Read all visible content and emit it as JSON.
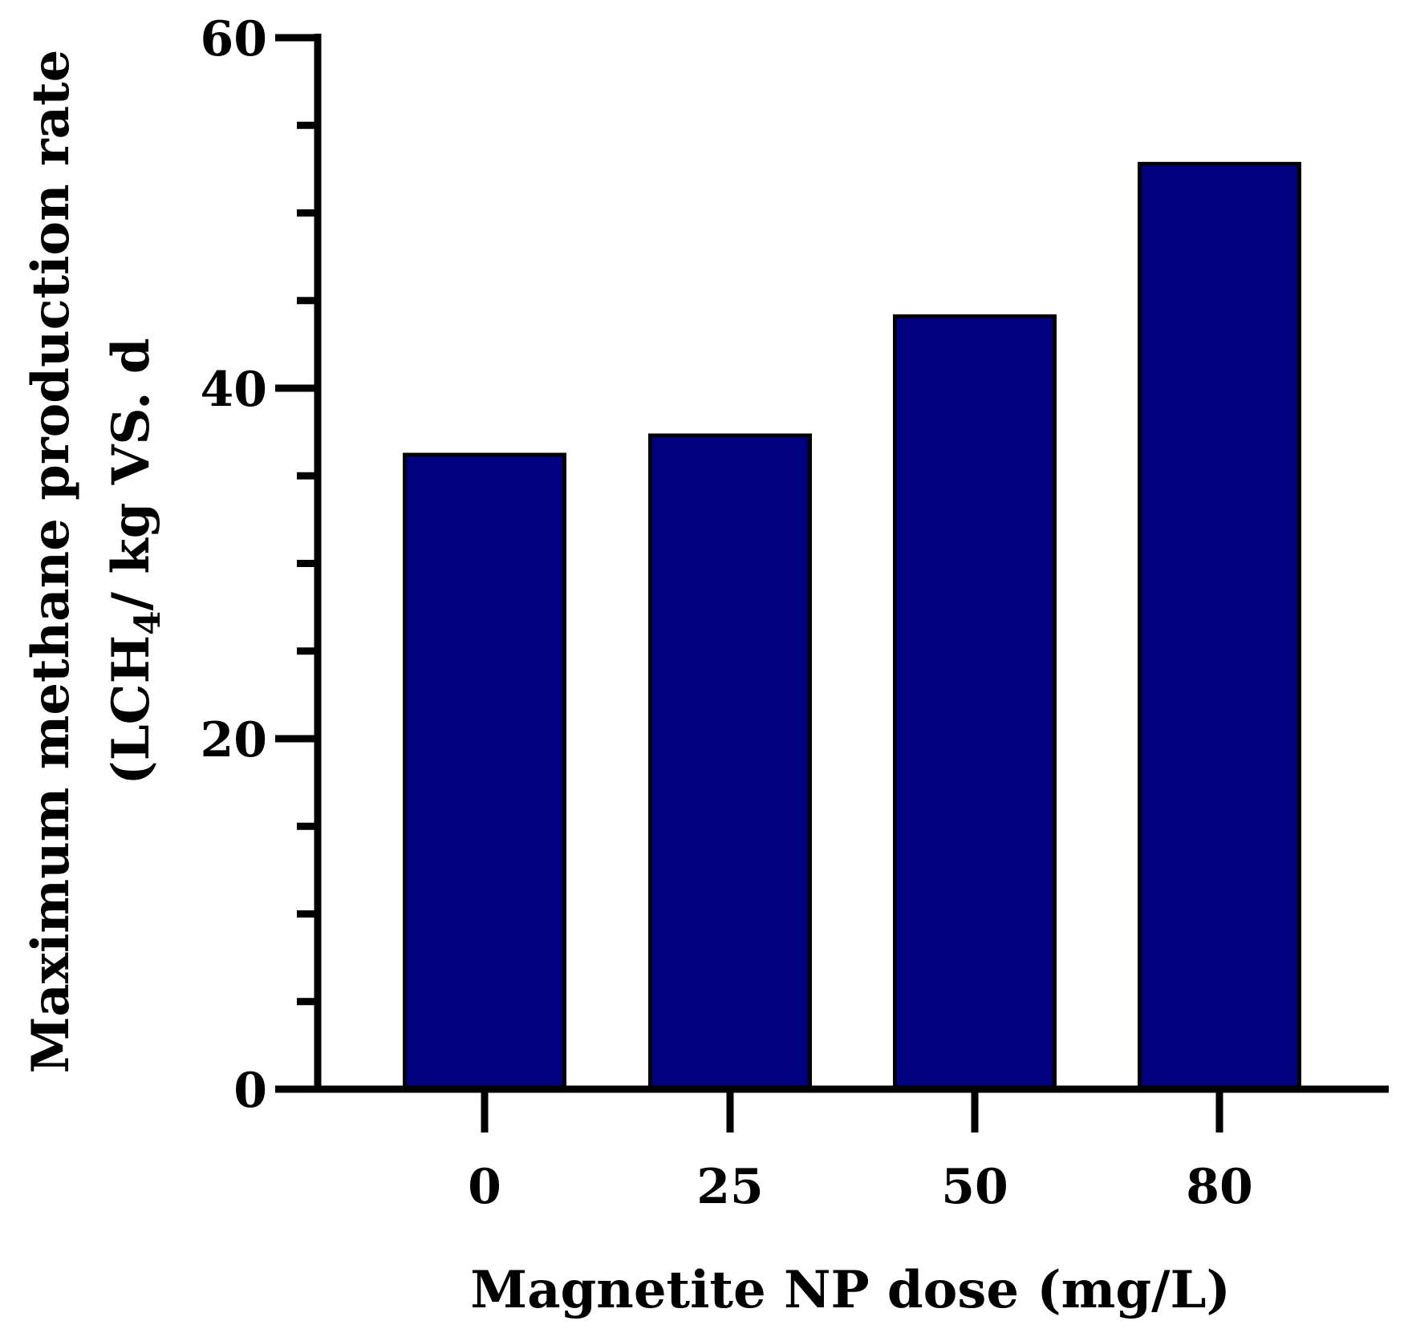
{
  "chart_data": {
    "type": "bar",
    "categories": [
      "0",
      "25",
      "50",
      "80"
    ],
    "values": [
      36.2,
      37.3,
      44.1,
      52.8
    ],
    "xlabel": "Magnetite NP dose (mg/L)",
    "ylabel_line1": "Maximum methane production rate",
    "ylabel_line2_prefix": "(LCH",
    "ylabel_line2_subscript": "4",
    "ylabel_line2_suffix": "/ kg VS. d",
    "ylim": [
      0,
      60
    ],
    "y_major_ticks": [
      0,
      20,
      40,
      60
    ],
    "y_minor_step": 5,
    "grid": false,
    "bar_color": "#000080",
    "edge_color": "#000000"
  }
}
